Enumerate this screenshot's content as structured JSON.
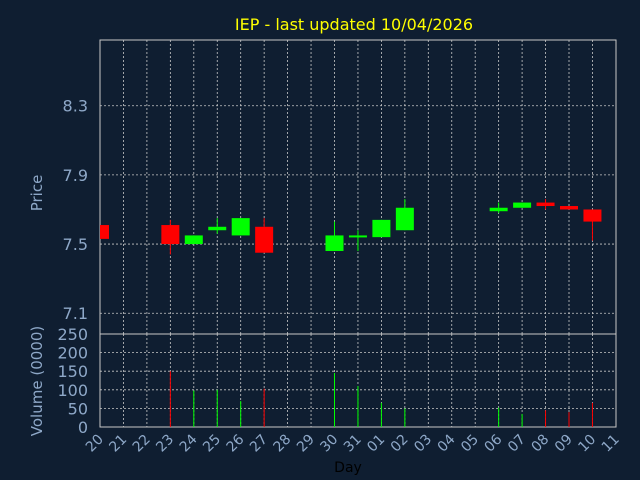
{
  "chart_data": {
    "type": "candlestick",
    "title": "IEP - last updated 10/04/2026",
    "price_panel": {
      "ylabel": "Price",
      "yticks": [
        7.1,
        7.5,
        7.9,
        8.3
      ],
      "ylim": [
        6.98,
        8.68
      ]
    },
    "volume_panel": {
      "ylabel": "Volume (0000)",
      "yticks": [
        0,
        50,
        100,
        150,
        200,
        250
      ],
      "ylim": [
        0,
        250
      ]
    },
    "xlabel": "Day",
    "x_ticks": [
      "20",
      "21",
      "22",
      "23",
      "24",
      "25",
      "26",
      "27",
      "28",
      "29",
      "30",
      "31",
      "01",
      "02",
      "03",
      "04",
      "05",
      "06",
      "07",
      "08",
      "09",
      "10",
      "11"
    ],
    "candles": [
      {
        "day": "20",
        "open": 7.61,
        "close": 7.53,
        "high": 7.61,
        "low": 7.53,
        "volume": 0
      },
      {
        "day": "23",
        "open": 7.61,
        "close": 7.5,
        "high": 7.64,
        "low": 7.44,
        "volume": 150
      },
      {
        "day": "24",
        "open": 7.5,
        "close": 7.55,
        "high": 7.55,
        "low": 7.5,
        "volume": 98
      },
      {
        "day": "25",
        "open": 7.58,
        "close": 7.6,
        "high": 7.65,
        "low": 7.56,
        "volume": 100
      },
      {
        "day": "26",
        "open": 7.55,
        "close": 7.65,
        "high": 7.65,
        "low": 7.55,
        "volume": 70
      },
      {
        "day": "27",
        "open": 7.6,
        "close": 7.45,
        "high": 7.65,
        "low": 7.45,
        "volume": 103
      },
      {
        "day": "30",
        "open": 7.46,
        "close": 7.55,
        "high": 7.63,
        "low": 7.46,
        "volume": 145
      },
      {
        "day": "31",
        "open": 7.54,
        "close": 7.55,
        "high": 7.58,
        "low": 7.46,
        "volume": 110
      },
      {
        "day": "01",
        "open": 7.54,
        "close": 7.64,
        "high": 7.64,
        "low": 7.54,
        "volume": 65
      },
      {
        "day": "02",
        "open": 7.58,
        "close": 7.71,
        "high": 7.76,
        "low": 7.58,
        "volume": 50
      },
      {
        "day": "06",
        "open": 7.69,
        "close": 7.71,
        "high": 7.74,
        "low": 7.68,
        "volume": 52
      },
      {
        "day": "07",
        "open": 7.71,
        "close": 7.74,
        "high": 7.74,
        "low": 7.71,
        "volume": 35
      },
      {
        "day": "08",
        "open": 7.74,
        "close": 7.72,
        "high": 7.76,
        "low": 7.7,
        "volume": 45
      },
      {
        "day": "09",
        "open": 7.72,
        "close": 7.7,
        "high": 7.72,
        "low": 7.7,
        "volume": 40
      },
      {
        "day": "10",
        "open": 7.7,
        "close": 7.63,
        "high": 7.7,
        "low": 7.52,
        "volume": 65
      }
    ],
    "colors": {
      "background": "#0f1e31",
      "grid": "#c8c8c8",
      "axis_text": "#8ea8c8",
      "title": "#ffff00",
      "up": "#00ff00",
      "down": "#ff0000",
      "axis_title": "#000000"
    }
  }
}
